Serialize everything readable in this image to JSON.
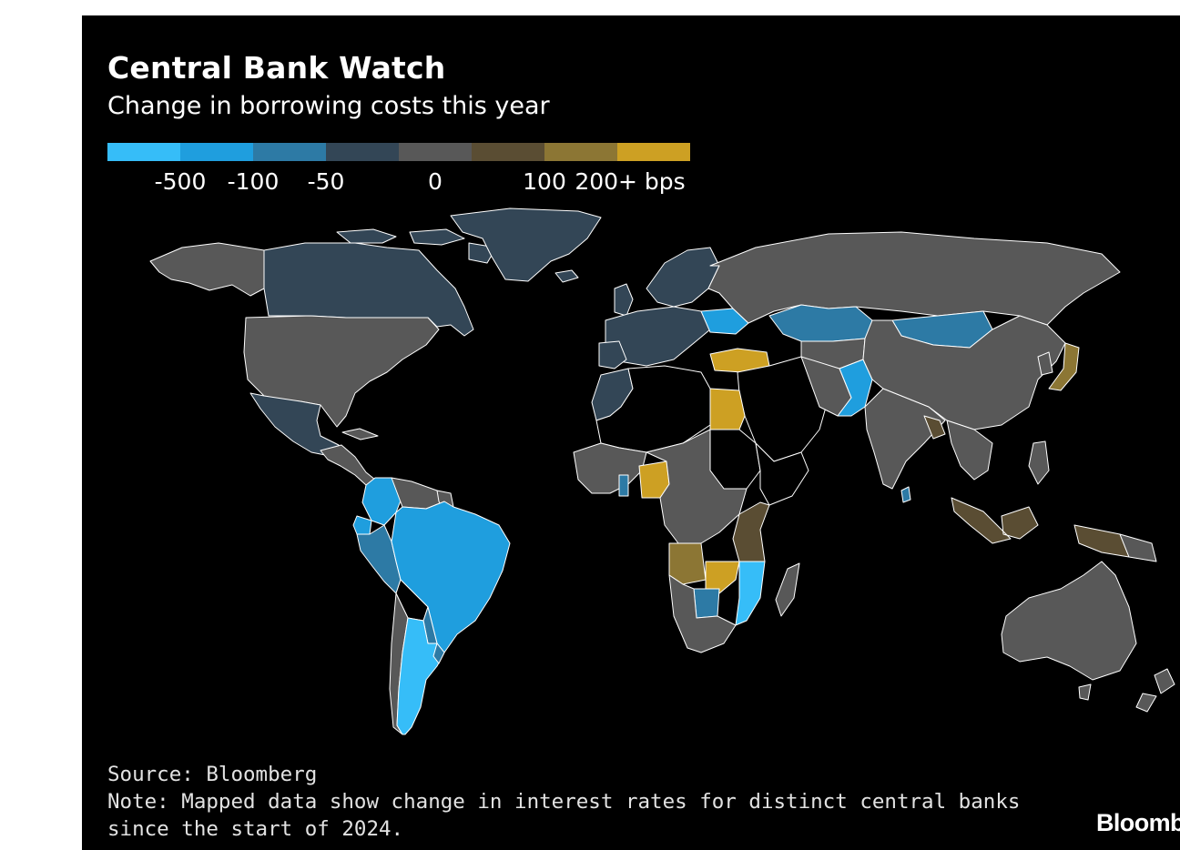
{
  "header": {
    "title": "Central Bank Watch",
    "subtitle": "Change in borrowing costs this year"
  },
  "legend": {
    "bins": [
      {
        "color": "#36bdf8",
        "label": ""
      },
      {
        "color": "#1f9ede",
        "label": "-500"
      },
      {
        "color": "#2d7aa5",
        "label": "-100"
      },
      {
        "color": "#334656",
        "label": "-50"
      },
      {
        "color": "#585858",
        "label": "0"
      },
      {
        "color": "#5a4d33",
        "label": ""
      },
      {
        "color": "#8c7634",
        "label": "100"
      },
      {
        "color": "#cda023",
        "label": "200+ bps"
      }
    ]
  },
  "map_data": {
    "metric": "Change in interest rates since the start of 2024 (bps)",
    "fill_classes": {
      "strong_cut": "#36bdf8",
      "cut_500": "#1f9ede",
      "cut_100": "#2d7aa5",
      "cut_50": "#334656",
      "neutral": "#585858",
      "small_hike": "#5a4d33",
      "hike_100": "#8c7634",
      "hike_200_plus": "#cda023",
      "no_data": "#000000"
    },
    "border_color": "#ffffff"
  },
  "footer": {
    "source": "Source: Bloomberg",
    "note_line1": "Note: Mapped data show change in interest rates for distinct central banks",
    "note_line2": "since the start of 2024."
  },
  "brand": {
    "name": "Bloomberg"
  }
}
